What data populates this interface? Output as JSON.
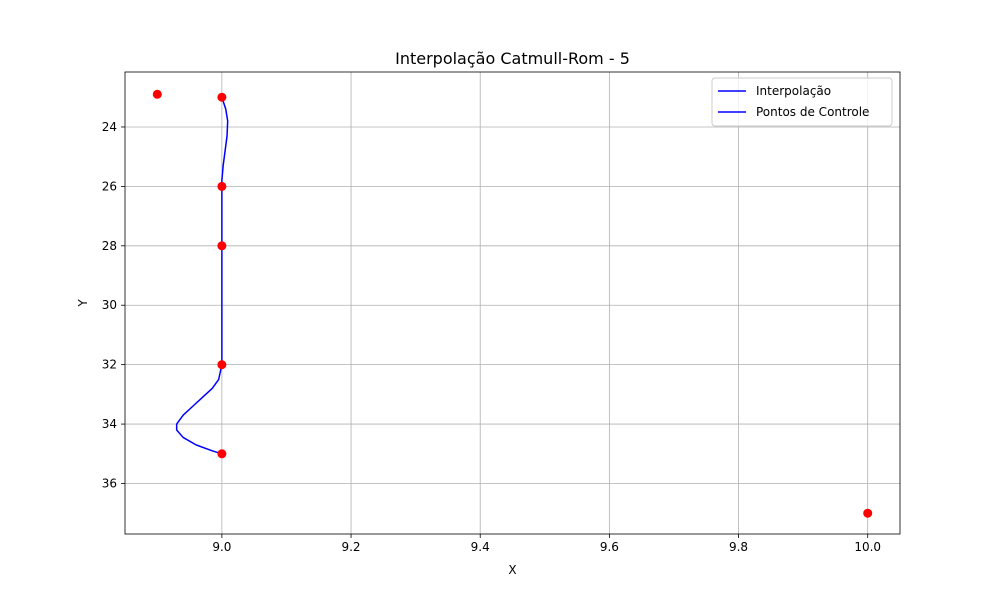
{
  "chart_data": {
    "type": "line",
    "title": "Interpolação Catmull-Rom - 5",
    "xlabel": "X",
    "ylabel": "Y",
    "xlim": [
      8.85,
      10.05
    ],
    "ylim": [
      37.7,
      22.15
    ],
    "y_inverted": true,
    "grid": true,
    "legend_position": "top-right",
    "xticks": [
      9.0,
      9.2,
      9.4,
      9.6,
      9.8,
      10.0
    ],
    "xtick_labels": [
      "9.0",
      "9.2",
      "9.4",
      "9.6",
      "9.8",
      "10.0"
    ],
    "yticks": [
      24,
      26,
      28,
      30,
      32,
      34,
      36
    ],
    "ytick_labels": [
      "24",
      "26",
      "28",
      "30",
      "32",
      "34",
      "36"
    ],
    "series": [
      {
        "name": "Interpolação",
        "color": "#0000ff",
        "x": [
          9.0,
          9.006,
          9.009,
          9.008,
          9.005,
          9.002,
          9.0,
          9.0,
          9.0,
          9.0,
          9.0,
          9.0,
          9.0,
          9.0,
          8.995,
          8.985,
          8.97,
          8.955,
          8.94,
          8.93,
          8.93,
          8.94,
          8.96,
          8.985,
          9.0
        ],
        "y": [
          23.0,
          23.4,
          23.8,
          24.3,
          24.8,
          25.3,
          25.8,
          26.0,
          27.0,
          28.0,
          29.0,
          30.0,
          31.0,
          32.0,
          32.5,
          32.8,
          33.1,
          33.4,
          33.7,
          34.0,
          34.2,
          34.45,
          34.7,
          34.9,
          35.0
        ]
      },
      {
        "name": "Pontos de Controle",
        "color": "#0000ff",
        "x": [],
        "y": []
      }
    ],
    "control_points": {
      "color": "#ff0000",
      "x": [
        8.9,
        9.0,
        9.0,
        9.0,
        9.0,
        9.0,
        10.0
      ],
      "y": [
        22.9,
        23.0,
        26.0,
        28.0,
        32.0,
        35.0,
        37.0
      ]
    }
  }
}
